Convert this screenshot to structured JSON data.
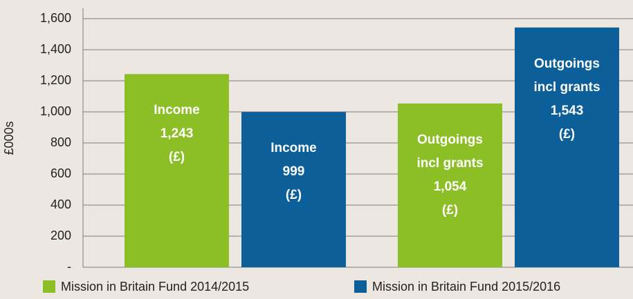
{
  "chart_data": {
    "type": "bar",
    "ylabel": "£000s",
    "categories": [
      "Income",
      "Outgoings incl grants"
    ],
    "value_unit": "(£)",
    "series": [
      {
        "name": "Mission in Britain Fund 2014/2015",
        "color": "#8cbf26",
        "values": [
          1243,
          1054
        ],
        "value_labels": [
          "1,243",
          "1,054"
        ]
      },
      {
        "name": "Mission in Britain Fund 2015/2016",
        "color": "#0d5f9a",
        "values": [
          999,
          1543
        ],
        "value_labels": [
          "999",
          "1,543"
        ]
      }
    ],
    "ylim": [
      0,
      1600
    ],
    "yticks": [
      {
        "value": 0,
        "label": "-"
      },
      200,
      400,
      600,
      800,
      {
        "value": 1000,
        "label": "1,000"
      },
      {
        "value": 1200,
        "label": "1,200"
      },
      {
        "value": 1400,
        "label": "1,400"
      },
      {
        "value": 1600,
        "label": "1,600"
      }
    ],
    "grid": true
  }
}
